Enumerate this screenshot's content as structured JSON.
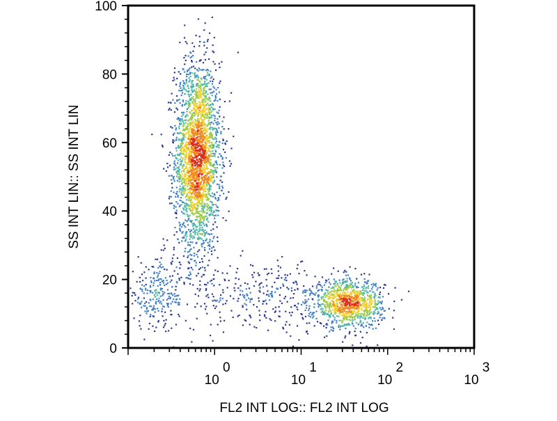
{
  "chart_data": {
    "type": "scatter",
    "style": "density dot plot (flow cytometry)",
    "xlabel": "FL2 INT LOG:: FL2 INT LOG",
    "ylabel": "SS INT LIN:: SS INT LIN",
    "x_scale": "log",
    "xlim": [
      0.1,
      1000
    ],
    "ylim": [
      0,
      100
    ],
    "x_ticks": [
      {
        "value": 1,
        "base": "10",
        "exp": "0"
      },
      {
        "value": 10,
        "base": "10",
        "exp": "1"
      },
      {
        "value": 100,
        "base": "10",
        "exp": "2"
      },
      {
        "value": 1000,
        "base": "10",
        "exp": "3"
      }
    ],
    "y_ticks": [
      0,
      20,
      40,
      60,
      80,
      100
    ],
    "grid": false,
    "legend": "none",
    "density_colors": [
      "#2b3a8f",
      "#3f7fc4",
      "#4fb7a8",
      "#9ccc4a",
      "#f0d02c",
      "#f08a1e",
      "#d9301c"
    ],
    "populations": [
      {
        "x_center": 0.62,
        "y_center": 56,
        "x_spread_decades": 0.13,
        "y_spread": 14,
        "points": 2600
      },
      {
        "x_center": 0.22,
        "y_center": 16,
        "x_spread_decades": 0.2,
        "y_spread": 5,
        "points": 260
      },
      {
        "x_center": 35,
        "y_center": 13,
        "x_spread_decades": 0.2,
        "y_spread": 3.5,
        "points": 1000
      },
      {
        "x_center": 4,
        "y_center": 15,
        "x_spread_decades": 0.5,
        "y_spread": 5,
        "points": 320
      }
    ]
  }
}
